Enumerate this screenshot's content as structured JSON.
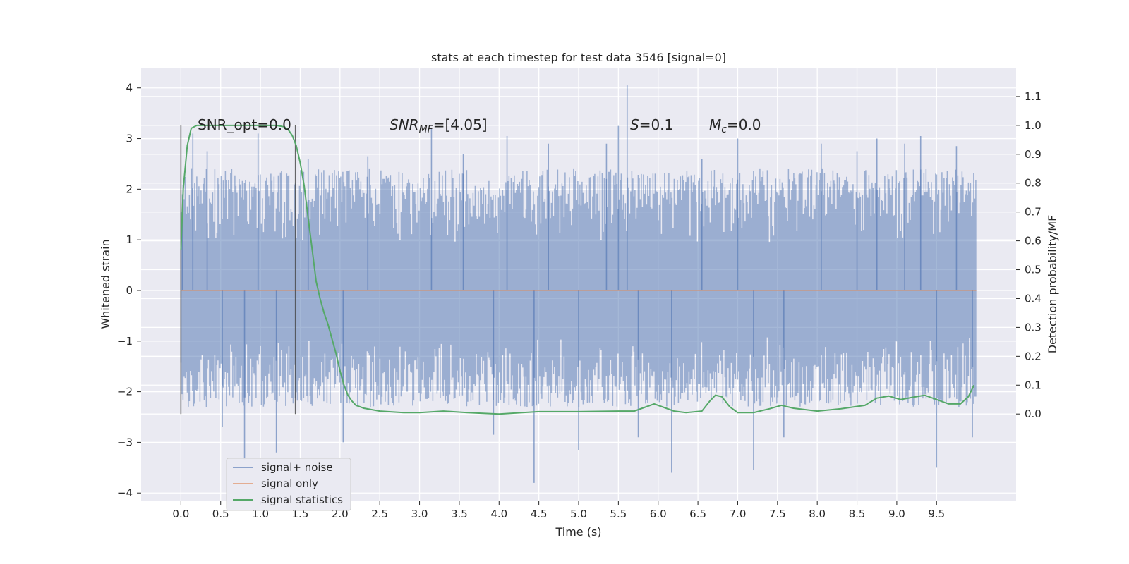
{
  "chart_data": {
    "type": "line",
    "title": "stats at each timestep for test data 3546 [signal=0]",
    "xlabel": "Time (s)",
    "ylabel": "Whitened strain",
    "y2label": "Detection probability/MF",
    "xlim": [
      -0.5,
      10.5
    ],
    "ylim": [
      -4.15,
      4.4
    ],
    "y2lim": [
      -0.3,
      1.2
    ],
    "x_ticks": [
      "0.0",
      "0.5",
      "1.0",
      "1.5",
      "2.0",
      "2.5",
      "3.0",
      "3.5",
      "4.0",
      "4.5",
      "5.0",
      "5.5",
      "6.0",
      "6.5",
      "7.0",
      "7.5",
      "8.0",
      "8.5",
      "9.0",
      "9.5"
    ],
    "y_ticks": [
      "4",
      "3",
      "2",
      "1",
      "0",
      "−1",
      "−2",
      "−3",
      "−4"
    ],
    "y2_ticks": [
      "1.1",
      "1.0",
      "0.9",
      "0.8",
      "0.7",
      "0.6",
      "0.5",
      "0.4",
      "0.3",
      "0.2",
      "0.1",
      "0.0"
    ],
    "grid": true,
    "legend_position": "lower-left",
    "colors": {
      "background": "#eaeaf2",
      "grid": "#ffffff",
      "noise": "#4c72b0",
      "signal_only": "#dd8452",
      "statistics": "#55a868",
      "window_lines": "#444444"
    },
    "annotations": {
      "snr_opt": "SNR_opt=0.0",
      "snr_mf_main": "SNR",
      "snr_mf_sub": "MF",
      "snr_mf_value": "=[4.05]",
      "s_main": "S",
      "s_value": "=0.1",
      "mc_main": "M",
      "mc_sub": "c",
      "mc_value": "=0.0"
    },
    "window_lines_x": [
      0.0,
      1.44
    ],
    "noise_range": {
      "x_start": 0.0,
      "x_end": 10.0,
      "typical_low": -1.7,
      "typical_high": 1.8,
      "peak_max": 4.05,
      "peak_min": -3.8
    },
    "noise_peaks": [
      {
        "x": 0.02,
        "y": 1.9
      },
      {
        "x": 0.15,
        "y": 3.1
      },
      {
        "x": 0.33,
        "y": 2.75
      },
      {
        "x": 0.52,
        "y": -2.7
      },
      {
        "x": 0.8,
        "y": -3.35
      },
      {
        "x": 0.97,
        "y": 3.1
      },
      {
        "x": 1.2,
        "y": -3.2
      },
      {
        "x": 1.6,
        "y": 2.6
      },
      {
        "x": 2.04,
        "y": -3.0
      },
      {
        "x": 2.35,
        "y": 2.65
      },
      {
        "x": 3.15,
        "y": 3.2
      },
      {
        "x": 3.55,
        "y": 2.7
      },
      {
        "x": 3.93,
        "y": -2.85
      },
      {
        "x": 4.1,
        "y": 3.05
      },
      {
        "x": 4.44,
        "y": -3.8
      },
      {
        "x": 4.62,
        "y": 2.9
      },
      {
        "x": 5.0,
        "y": -3.15
      },
      {
        "x": 5.35,
        "y": 2.9
      },
      {
        "x": 5.5,
        "y": 3.25
      },
      {
        "x": 5.61,
        "y": 4.05
      },
      {
        "x": 5.75,
        "y": -2.9
      },
      {
        "x": 6.17,
        "y": -3.6
      },
      {
        "x": 6.55,
        "y": 2.6
      },
      {
        "x": 7.0,
        "y": 3.0
      },
      {
        "x": 7.2,
        "y": -3.55
      },
      {
        "x": 7.58,
        "y": -2.9
      },
      {
        "x": 8.05,
        "y": 2.9
      },
      {
        "x": 8.5,
        "y": 2.75
      },
      {
        "x": 8.75,
        "y": 3.0
      },
      {
        "x": 9.1,
        "y": 2.9
      },
      {
        "x": 9.3,
        "y": 3.05
      },
      {
        "x": 9.5,
        "y": -3.5
      },
      {
        "x": 9.75,
        "y": 2.85
      },
      {
        "x": 9.95,
        "y": -2.9
      }
    ],
    "series": [
      {
        "name": "signal+ noise",
        "note": "dense noise band between about -1.7 and 1.8 with spikes listed in noise_peaks"
      },
      {
        "name": "signal only",
        "x": [
          0.0,
          10.0
        ],
        "y": [
          0.0,
          0.0
        ]
      },
      {
        "name": "signal statistics",
        "axis": "right",
        "x": [
          0.0,
          0.03,
          0.08,
          0.13,
          0.2,
          0.4,
          0.8,
          1.2,
          1.3,
          1.35,
          1.4,
          1.45,
          1.5,
          1.55,
          1.6,
          1.65,
          1.7,
          1.75,
          1.8,
          1.85,
          1.9,
          1.95,
          2.0,
          2.05,
          2.1,
          2.15,
          2.2,
          2.3,
          2.5,
          2.8,
          3.0,
          3.3,
          3.6,
          4.0,
          4.5,
          5.0,
          5.5,
          5.7,
          5.85,
          5.95,
          6.05,
          6.2,
          6.35,
          6.55,
          6.65,
          6.72,
          6.8,
          6.9,
          7.0,
          7.2,
          7.4,
          7.55,
          7.7,
          8.0,
          8.3,
          8.6,
          8.75,
          8.9,
          9.05,
          9.2,
          9.35,
          9.5,
          9.65,
          9.8,
          9.9,
          9.97
        ],
        "y": [
          0.57,
          0.78,
          0.93,
          0.99,
          1.0,
          1.0,
          1.0,
          1.0,
          0.995,
          0.985,
          0.965,
          0.93,
          0.87,
          0.79,
          0.68,
          0.57,
          0.46,
          0.4,
          0.35,
          0.31,
          0.26,
          0.21,
          0.15,
          0.1,
          0.065,
          0.045,
          0.03,
          0.02,
          0.01,
          0.005,
          0.005,
          0.01,
          0.005,
          0.0,
          0.008,
          0.008,
          0.01,
          0.01,
          0.025,
          0.035,
          0.025,
          0.01,
          0.005,
          0.01,
          0.045,
          0.065,
          0.06,
          0.025,
          0.005,
          0.005,
          0.018,
          0.03,
          0.02,
          0.01,
          0.018,
          0.03,
          0.055,
          0.062,
          0.05,
          0.058,
          0.065,
          0.05,
          0.035,
          0.035,
          0.06,
          0.1
        ]
      }
    ]
  }
}
